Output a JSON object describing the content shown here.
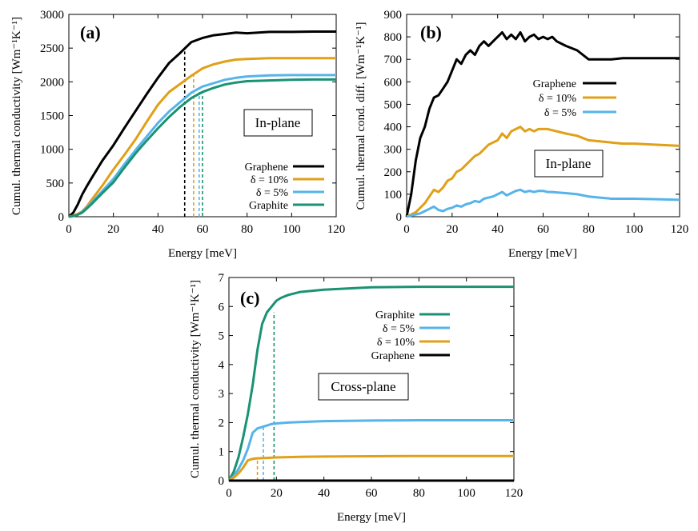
{
  "chart_data": [
    {
      "id": "a",
      "type": "line",
      "panel_label": "(a)",
      "annotation": "In-plane",
      "xlabel": "Energy [meV]",
      "ylabel": "Cumul. thermal conductivity [Wm⁻¹K⁻¹]",
      "xlim": [
        0,
        120
      ],
      "ylim": [
        0,
        3000
      ],
      "xticks": [
        "0",
        "20",
        "40",
        "60",
        "80",
        "100",
        "120"
      ],
      "yticks": [
        "0",
        "500",
        "1000",
        "1500",
        "2000",
        "2500",
        "3000"
      ],
      "legend": [
        "Graphene",
        "δ = 10%",
        "δ = 5%",
        "Graphite"
      ],
      "vlines": [
        {
          "series": "Graphene",
          "x": 52,
          "y": 2450
        },
        {
          "series": "δ = 10%",
          "x": 56,
          "y": 2110
        },
        {
          "series": "δ = 5%",
          "x": 58.5,
          "y": 1850
        },
        {
          "series": "Graphite",
          "x": 60,
          "y": 1860
        }
      ],
      "series": [
        {
          "name": "Graphene",
          "color": "#000000",
          "x": [
            0,
            2,
            4,
            6,
            8,
            10,
            15,
            20,
            25,
            30,
            35,
            40,
            45,
            50,
            55,
            60,
            65,
            70,
            75,
            80,
            90,
            100,
            110,
            120
          ],
          "y": [
            0,
            60,
            180,
            330,
            450,
            560,
            830,
            1060,
            1320,
            1570,
            1820,
            2060,
            2280,
            2430,
            2590,
            2650,
            2690,
            2710,
            2730,
            2720,
            2740,
            2740,
            2745,
            2745
          ]
        },
        {
          "name": "δ = 10%",
          "color": "#e0a018",
          "x": [
            0,
            2,
            4,
            6,
            8,
            10,
            15,
            20,
            25,
            30,
            35,
            40,
            45,
            50,
            55,
            60,
            65,
            70,
            75,
            80,
            90,
            100,
            110,
            120
          ],
          "y": [
            0,
            15,
            40,
            80,
            150,
            240,
            460,
            700,
            920,
            1150,
            1410,
            1660,
            1850,
            1970,
            2090,
            2200,
            2260,
            2300,
            2330,
            2340,
            2350,
            2350,
            2350,
            2350
          ]
        },
        {
          "name": "δ = 5%",
          "color": "#56b4e9",
          "x": [
            0,
            2,
            4,
            6,
            8,
            10,
            15,
            20,
            25,
            30,
            35,
            40,
            45,
            50,
            55,
            60,
            65,
            70,
            75,
            80,
            90,
            100,
            110,
            120
          ],
          "y": [
            0,
            10,
            30,
            70,
            130,
            200,
            380,
            560,
            780,
            990,
            1190,
            1390,
            1560,
            1700,
            1840,
            1930,
            1980,
            2030,
            2060,
            2080,
            2095,
            2100,
            2100,
            2100
          ]
        },
        {
          "name": "Graphite",
          "color": "#1a9273",
          "x": [
            0,
            2,
            4,
            6,
            8,
            10,
            15,
            20,
            25,
            30,
            35,
            40,
            45,
            50,
            55,
            60,
            65,
            70,
            75,
            80,
            90,
            100,
            110,
            120
          ],
          "y": [
            0,
            10,
            30,
            60,
            120,
            180,
            350,
            510,
            730,
            940,
            1130,
            1310,
            1480,
            1630,
            1760,
            1850,
            1910,
            1960,
            1990,
            2010,
            2020,
            2030,
            2035,
            2035
          ]
        }
      ]
    },
    {
      "id": "b",
      "type": "line",
      "panel_label": "(b)",
      "annotation": "In-plane",
      "xlabel": "Energy [meV]",
      "ylabel": "Cumul. thermal cond. diff. [Wm⁻¹K⁻¹]",
      "xlim": [
        0,
        120
      ],
      "ylim": [
        0,
        900
      ],
      "xticks": [
        "0",
        "20",
        "40",
        "60",
        "80",
        "100",
        "120"
      ],
      "yticks": [
        "0",
        "100",
        "200",
        "300",
        "400",
        "500",
        "600",
        "700",
        "800",
        "900"
      ],
      "legend": [
        "Graphene",
        "δ = 10%",
        "δ = 5%"
      ],
      "series": [
        {
          "name": "Graphene",
          "color": "#000000",
          "x": [
            0,
            2,
            4,
            6,
            8,
            10,
            12,
            14,
            16,
            18,
            20,
            22,
            24,
            26,
            28,
            30,
            32,
            34,
            36,
            38,
            40,
            42,
            44,
            46,
            48,
            50,
            52,
            54,
            56,
            58,
            60,
            62,
            64,
            66,
            70,
            75,
            80,
            85,
            90,
            95,
            100,
            110,
            120
          ],
          "y": [
            0,
            100,
            250,
            350,
            400,
            480,
            530,
            540,
            570,
            600,
            650,
            700,
            680,
            720,
            740,
            720,
            760,
            780,
            760,
            780,
            800,
            820,
            790,
            810,
            790,
            820,
            780,
            800,
            810,
            790,
            800,
            790,
            800,
            780,
            760,
            740,
            700,
            700,
            700,
            705,
            705,
            705,
            705
          ]
        },
        {
          "name": "δ = 10%",
          "color": "#e0a018",
          "x": [
            0,
            2,
            4,
            6,
            8,
            10,
            12,
            14,
            16,
            18,
            20,
            22,
            24,
            26,
            28,
            30,
            32,
            34,
            36,
            38,
            40,
            42,
            44,
            46,
            48,
            50,
            52,
            54,
            56,
            58,
            60,
            62,
            64,
            66,
            70,
            75,
            80,
            85,
            90,
            95,
            100,
            110,
            120
          ],
          "y": [
            0,
            10,
            20,
            40,
            60,
            90,
            120,
            110,
            130,
            160,
            170,
            200,
            210,
            230,
            250,
            270,
            280,
            300,
            320,
            330,
            340,
            370,
            350,
            380,
            390,
            400,
            380,
            390,
            380,
            390,
            390,
            390,
            385,
            380,
            370,
            360,
            340,
            335,
            330,
            325,
            325,
            320,
            315
          ]
        },
        {
          "name": "δ = 5%",
          "color": "#56b4e9",
          "x": [
            0,
            2,
            4,
            6,
            8,
            10,
            12,
            14,
            16,
            18,
            20,
            22,
            24,
            26,
            28,
            30,
            32,
            34,
            36,
            38,
            40,
            42,
            44,
            46,
            48,
            50,
            52,
            54,
            56,
            58,
            60,
            62,
            64,
            66,
            70,
            75,
            80,
            85,
            90,
            95,
            100,
            110,
            120
          ],
          "y": [
            0,
            5,
            10,
            15,
            25,
            35,
            45,
            30,
            25,
            35,
            40,
            50,
            45,
            55,
            60,
            70,
            65,
            80,
            85,
            90,
            100,
            110,
            95,
            105,
            115,
            120,
            110,
            115,
            110,
            115,
            115,
            110,
            110,
            108,
            105,
            100,
            90,
            85,
            80,
            80,
            80,
            78,
            75
          ]
        }
      ]
    },
    {
      "id": "c",
      "type": "line",
      "panel_label": "(c)",
      "annotation": "Cross-plane",
      "xlabel": "Energy [meV]",
      "ylabel": "Cumul. thermal conductivity [Wm⁻¹K⁻¹]",
      "xlim": [
        0,
        120
      ],
      "ylim": [
        0,
        7
      ],
      "xticks": [
        "0",
        "20",
        "40",
        "60",
        "80",
        "100",
        "120"
      ],
      "yticks": [
        "0",
        "1",
        "2",
        "3",
        "4",
        "5",
        "6",
        "7"
      ],
      "legend": [
        "Graphite",
        "δ = 5%",
        "δ = 10%",
        "Graphene"
      ],
      "vlines": [
        {
          "series": "δ = 10%",
          "x": 12,
          "y": 0.8
        },
        {
          "series": "δ = 5%",
          "x": 14.5,
          "y": 1.9
        },
        {
          "series": "Graphite",
          "x": 19,
          "y": 5.8
        }
      ],
      "series": [
        {
          "name": "Graphite",
          "color": "#1a9273",
          "x": [
            0,
            2,
            4,
            6,
            8,
            10,
            12,
            14,
            16,
            18,
            20,
            22,
            25,
            30,
            40,
            50,
            60,
            80,
            100,
            120
          ],
          "y": [
            0,
            0.3,
            0.8,
            1.5,
            2.3,
            3.3,
            4.5,
            5.4,
            5.8,
            6.0,
            6.2,
            6.3,
            6.4,
            6.5,
            6.58,
            6.62,
            6.66,
            6.68,
            6.68,
            6.68
          ]
        },
        {
          "name": "δ = 5%",
          "color": "#56b4e9",
          "x": [
            0,
            2,
            4,
            6,
            8,
            10,
            12,
            14,
            16,
            18,
            20,
            25,
            30,
            40,
            60,
            80,
            100,
            120
          ],
          "y": [
            0,
            0.15,
            0.4,
            0.7,
            1.1,
            1.65,
            1.8,
            1.85,
            1.9,
            1.95,
            1.97,
            2.0,
            2.02,
            2.05,
            2.07,
            2.08,
            2.08,
            2.08
          ]
        },
        {
          "name": "δ = 10%",
          "color": "#e0a018",
          "x": [
            0,
            2,
            4,
            6,
            8,
            10,
            12,
            15,
            20,
            30,
            40,
            60,
            80,
            100,
            120
          ],
          "y": [
            0,
            0.1,
            0.25,
            0.45,
            0.7,
            0.75,
            0.77,
            0.78,
            0.8,
            0.82,
            0.83,
            0.84,
            0.85,
            0.85,
            0.85
          ]
        },
        {
          "name": "Graphene",
          "color": "#000000",
          "x": [
            0,
            120
          ],
          "y": [
            0,
            0
          ]
        }
      ]
    }
  ]
}
